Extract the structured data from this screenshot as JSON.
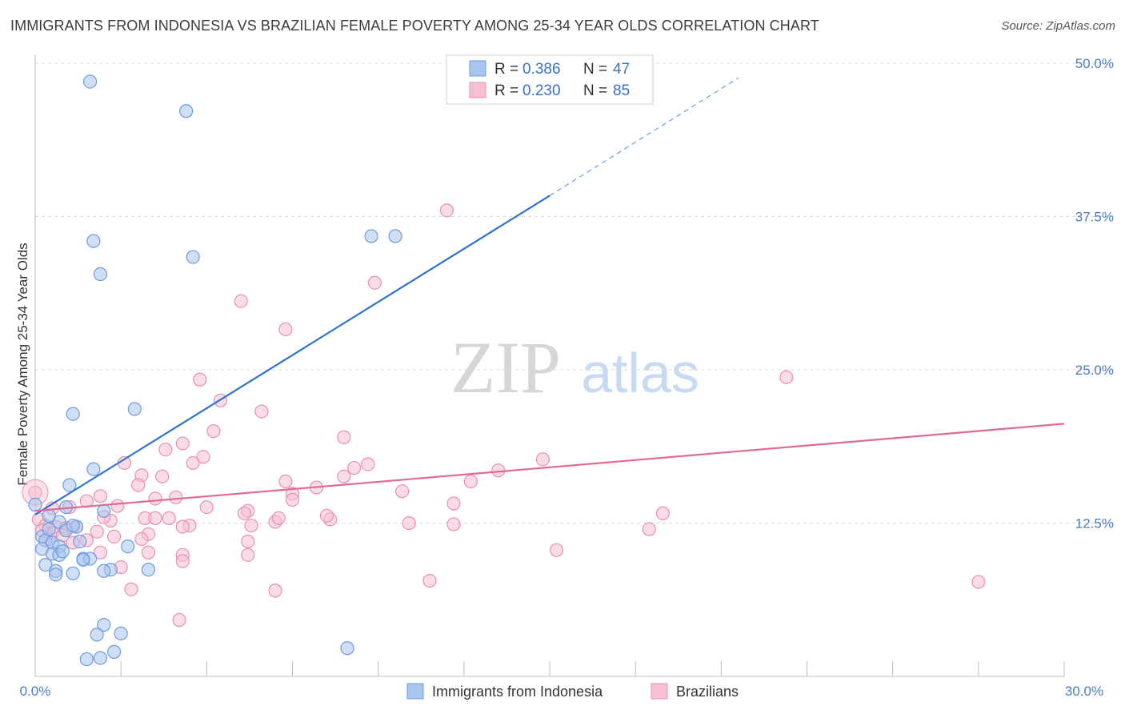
{
  "header": {
    "title": "IMMIGRANTS FROM INDONESIA VS BRAZILIAN FEMALE POVERTY AMONG 25-34 YEAR OLDS CORRELATION CHART",
    "source": "Source: ZipAtlas.com"
  },
  "watermark": {
    "zip": "ZIP",
    "atlas": "atlas"
  },
  "colors": {
    "blue_fill": "#a9c5ee",
    "blue_stroke": "#6b9ce0",
    "blue_line": "#2f74d0",
    "pink_fill": "#f6bfd2",
    "pink_stroke": "#eb8fb0",
    "pink_line": "#e06a96",
    "axis_text": "#4a7cc7",
    "grid": "#d8d8d8"
  },
  "legend": {
    "rows": [
      {
        "r_label": "R =",
        "r_value": "0.386",
        "n_label": "N =",
        "n_value": "47"
      },
      {
        "r_label": "R =",
        "r_value": "0.230",
        "n_label": "N =",
        "n_value": "85"
      }
    ]
  },
  "bottom_legend": {
    "items": [
      {
        "label": "Immigrants from Indonesia"
      },
      {
        "label": "Brazilians"
      }
    ]
  },
  "chart_data": {
    "type": "scatter",
    "title": "IMMIGRANTS FROM INDONESIA VS BRAZILIAN FEMALE POVERTY AMONG 25-34 YEAR OLDS CORRELATION CHART",
    "xlabel": "",
    "ylabel": "Female Poverty Among 25-34 Year Olds",
    "xlim": [
      0,
      30
    ],
    "ylim": [
      0,
      50
    ],
    "x_tick_labels": [
      "0.0%",
      "30.0%"
    ],
    "y_ticks": [
      12.5,
      25.0,
      37.5,
      50.0
    ],
    "y_tick_labels": [
      "12.5%",
      "25.0%",
      "37.5%",
      "50.0%"
    ],
    "series": [
      {
        "name": "Immigrants from Indonesia",
        "R": 0.386,
        "N": 47,
        "trend": {
          "x0": 0,
          "y0": 13.2,
          "x1": 15,
          "y1": 39.2,
          "dash_to_x": 20.5,
          "dash_to_y": 48.8
        },
        "points": [
          [
            1.6,
            48.5
          ],
          [
            4.4,
            46.1
          ],
          [
            1.7,
            35.5
          ],
          [
            4.6,
            34.2
          ],
          [
            1.9,
            32.8
          ],
          [
            9.8,
            35.9
          ],
          [
            10.5,
            35.9
          ],
          [
            2.9,
            21.8
          ],
          [
            1.1,
            21.4
          ],
          [
            1.7,
            16.9
          ],
          [
            1.0,
            15.6
          ],
          [
            0.0,
            14.0
          ],
          [
            0.9,
            13.8
          ],
          [
            2.0,
            13.5
          ],
          [
            0.7,
            12.6
          ],
          [
            0.4,
            13.1
          ],
          [
            1.2,
            12.2
          ],
          [
            0.9,
            11.9
          ],
          [
            1.1,
            12.3
          ],
          [
            0.2,
            11.4
          ],
          [
            0.3,
            11.1
          ],
          [
            0.5,
            10.9
          ],
          [
            0.7,
            10.6
          ],
          [
            0.2,
            10.4
          ],
          [
            0.5,
            10.0
          ],
          [
            0.7,
            9.9
          ],
          [
            1.4,
            9.6
          ],
          [
            1.6,
            9.6
          ],
          [
            2.7,
            10.6
          ],
          [
            0.3,
            9.1
          ],
          [
            0.6,
            8.6
          ],
          [
            1.1,
            8.4
          ],
          [
            0.6,
            8.3
          ],
          [
            2.2,
            8.7
          ],
          [
            2.0,
            8.6
          ],
          [
            3.3,
            8.7
          ],
          [
            1.4,
            9.5
          ],
          [
            2.0,
            4.2
          ],
          [
            1.8,
            3.4
          ],
          [
            2.5,
            3.5
          ],
          [
            2.3,
            2.0
          ],
          [
            1.5,
            1.4
          ],
          [
            1.9,
            1.5
          ],
          [
            9.1,
            2.3
          ],
          [
            0.4,
            12.0
          ],
          [
            1.3,
            11.0
          ],
          [
            0.8,
            10.2
          ]
        ]
      },
      {
        "name": "Brazilians",
        "R": 0.23,
        "N": 85,
        "trend": {
          "x0": 0,
          "y0": 13.5,
          "x1": 30,
          "y1": 20.6
        },
        "points": [
          [
            12.0,
            38.0
          ],
          [
            9.9,
            32.1
          ],
          [
            6.0,
            30.6
          ],
          [
            7.3,
            28.3
          ],
          [
            4.8,
            24.2
          ],
          [
            21.9,
            24.4
          ],
          [
            5.4,
            22.5
          ],
          [
            6.6,
            21.6
          ],
          [
            5.2,
            20.0
          ],
          [
            9.0,
            19.5
          ],
          [
            4.3,
            19.0
          ],
          [
            3.8,
            18.5
          ],
          [
            4.9,
            17.9
          ],
          [
            14.8,
            17.7
          ],
          [
            4.6,
            17.4
          ],
          [
            2.6,
            17.4
          ],
          [
            9.7,
            17.3
          ],
          [
            9.3,
            17.0
          ],
          [
            13.5,
            16.8
          ],
          [
            3.7,
            16.3
          ],
          [
            3.1,
            16.4
          ],
          [
            9.0,
            16.3
          ],
          [
            12.7,
            15.9
          ],
          [
            7.3,
            15.9
          ],
          [
            8.2,
            15.4
          ],
          [
            3.0,
            15.6
          ],
          [
            10.7,
            15.1
          ],
          [
            7.5,
            14.9
          ],
          [
            1.9,
            14.7
          ],
          [
            4.1,
            14.6
          ],
          [
            3.5,
            14.5
          ],
          [
            7.5,
            14.4
          ],
          [
            12.2,
            14.1
          ],
          [
            1.5,
            14.3
          ],
          [
            2.4,
            13.9
          ],
          [
            1.0,
            13.8
          ],
          [
            0.5,
            13.7
          ],
          [
            6.2,
            13.5
          ],
          [
            6.1,
            13.3
          ],
          [
            0.0,
            15.0
          ],
          [
            18.3,
            13.3
          ],
          [
            3.2,
            12.9
          ],
          [
            3.5,
            12.9
          ],
          [
            8.6,
            12.8
          ],
          [
            2.2,
            12.7
          ],
          [
            3.9,
            12.9
          ],
          [
            4.5,
            12.3
          ],
          [
            7.0,
            12.6
          ],
          [
            6.3,
            12.3
          ],
          [
            12.2,
            12.4
          ],
          [
            1.2,
            12.2
          ],
          [
            0.6,
            12.2
          ],
          [
            4.3,
            12.2
          ],
          [
            17.9,
            12.0
          ],
          [
            3.3,
            11.6
          ],
          [
            0.9,
            12.1
          ],
          [
            1.8,
            11.8
          ],
          [
            2.3,
            11.4
          ],
          [
            3.1,
            11.2
          ],
          [
            1.5,
            11.1
          ],
          [
            6.2,
            11.0
          ],
          [
            0.4,
            11.2
          ],
          [
            1.1,
            10.9
          ],
          [
            3.3,
            10.1
          ],
          [
            4.3,
            9.9
          ],
          [
            6.2,
            9.9
          ],
          [
            15.2,
            10.3
          ],
          [
            4.3,
            9.4
          ],
          [
            2.5,
            8.9
          ],
          [
            11.5,
            7.8
          ],
          [
            27.5,
            7.7
          ],
          [
            2.8,
            7.1
          ],
          [
            7.0,
            7.0
          ],
          [
            4.2,
            4.6
          ],
          [
            0.1,
            12.8
          ],
          [
            0.3,
            12.3
          ],
          [
            0.5,
            11.7
          ],
          [
            0.8,
            11.5
          ],
          [
            1.9,
            10.1
          ],
          [
            5.0,
            13.8
          ],
          [
            7.1,
            12.9
          ],
          [
            8.5,
            13.1
          ],
          [
            10.9,
            12.5
          ],
          [
            0.2,
            11.9
          ],
          [
            2.0,
            13.0
          ]
        ]
      }
    ]
  }
}
